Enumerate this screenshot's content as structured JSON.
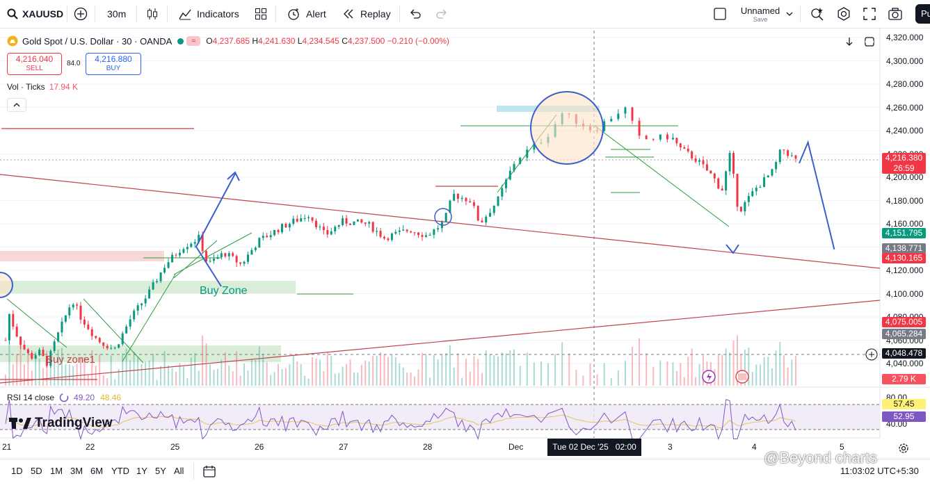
{
  "toolbar": {
    "symbol": "XAUUSD",
    "interval": "30m",
    "indicators_label": "Indicators",
    "alert_label": "Alert",
    "replay_label": "Replay",
    "layout_name": "Unnamed",
    "layout_save": "Save",
    "publish_label": "Pu"
  },
  "legend": {
    "title": "Gold Spot / U.S. Dollar · 30 · OANDA",
    "open_label": "O",
    "open": "4,237.685",
    "high_label": "H",
    "high": "4,241.630",
    "low_label": "L",
    "low": "4,234.545",
    "close_label": "C",
    "close": "4,237.500",
    "change": "−0.210 (−0.00%)",
    "sell_price": "4,216.040",
    "sell_label": "SELL",
    "spread": "84.0",
    "buy_price": "4,216.880",
    "buy_label": "BUY",
    "vol_label": "Vol · Ticks",
    "vol_value": "17.94 K"
  },
  "annotations": {
    "buy_zone": "Buy Zone",
    "buy_zone1": "Buy zone1"
  },
  "watermark": "TradingView",
  "credit": "@Beyond charts",
  "rsi": {
    "label": "RSI 14 close",
    "value1": "49.20",
    "value2": "48.46",
    "axis": [
      "80.00",
      "40.00"
    ],
    "tag1": "57.45",
    "tag2": "52.95"
  },
  "price_tags": [
    {
      "text": "4,216.380",
      "sub": "26:59",
      "color": "#f23645"
    },
    {
      "text": "4,151.795",
      "color": "#089981"
    },
    {
      "text": "4,138.771",
      "color": "#787b86"
    },
    {
      "text": "4,130.165",
      "color": "#f23645"
    },
    {
      "text": "4,075.005",
      "color": "#f23645"
    },
    {
      "text": "4,065.284",
      "color": "#787b86"
    },
    {
      "text": "4,048.478",
      "color": "#131722"
    },
    {
      "text": "2.79 K",
      "color": "#f7525f"
    }
  ],
  "time_axis": {
    "labels": [
      "21",
      "22",
      "25",
      "26",
      "27",
      "28",
      "Dec",
      "3",
      "4",
      "5"
    ],
    "crosshair_label": "Tue 02 Dec '25   02:00"
  },
  "ranges": [
    "1D",
    "5D",
    "1M",
    "3M",
    "6M",
    "YTD",
    "1Y",
    "5Y",
    "All"
  ],
  "clock": "11:03:02 UTC+5:30",
  "chart_data": {
    "type": "candlestick",
    "symbol": "XAUUSD",
    "timeframe": "30",
    "y_ticks": [
      4320,
      4300,
      4280,
      4260,
      4240,
      4220,
      4200,
      4180,
      4160,
      4140,
      4120,
      4100,
      4080,
      4060,
      4040
    ],
    "y_tick_labels": [
      "4,320.000",
      "4,300.000",
      "4,280.000",
      "4,260.000",
      "4,240.000",
      "4,220.000",
      "4,200.000",
      "4,180.000",
      "4,160.000",
      "4,140.000",
      "4,120.000",
      "4,100.000",
      "4,080.000",
      "4,060.000",
      "4,040.000"
    ],
    "ylim": [
      4030,
      4330
    ],
    "x_labels": [
      "21",
      "22",
      "25",
      "26",
      "27",
      "28",
      "Dec",
      "3",
      "4",
      "5"
    ],
    "close_path": [
      [
        0,
        4060
      ],
      [
        0.05,
        4085
      ],
      [
        0.1,
        4070
      ],
      [
        0.2,
        4055
      ],
      [
        0.3,
        4045
      ],
      [
        0.4,
        4050
      ],
      [
        0.5,
        4040
      ],
      [
        0.6,
        4060
      ],
      [
        0.8,
        4095
      ],
      [
        0.9,
        4080
      ],
      [
        1.1,
        4060
      ],
      [
        1.3,
        4052
      ],
      [
        1.5,
        4080
      ],
      [
        1.7,
        4100
      ],
      [
        1.9,
        4125
      ],
      [
        2.1,
        4140
      ],
      [
        2.3,
        4148
      ],
      [
        2.4,
        4125
      ],
      [
        2.6,
        4135
      ],
      [
        2.8,
        4125
      ],
      [
        3.0,
        4145
      ],
      [
        3.3,
        4158
      ],
      [
        3.6,
        4168
      ],
      [
        3.8,
        4150
      ],
      [
        4.0,
        4162
      ],
      [
        4.3,
        4160
      ],
      [
        4.5,
        4148
      ],
      [
        4.8,
        4155
      ],
      [
        5.0,
        4150
      ],
      [
        5.1,
        4155
      ],
      [
        5.2,
        4162
      ],
      [
        5.3,
        4185
      ],
      [
        5.5,
        4180
      ],
      [
        5.6,
        4160
      ],
      [
        5.8,
        4180
      ],
      [
        6.0,
        4215
      ],
      [
        6.2,
        4235
      ],
      [
        6.3,
        4255
      ],
      [
        6.5,
        4240
      ],
      [
        6.7,
        4260
      ],
      [
        6.8,
        4232
      ],
      [
        7.0,
        4235
      ],
      [
        7.1,
        4225
      ],
      [
        7.3,
        4215
      ],
      [
        7.5,
        4200
      ],
      [
        7.6,
        4188
      ],
      [
        7.7,
        4220
      ],
      [
        7.8,
        4170
      ],
      [
        8.0,
        4190
      ],
      [
        8.2,
        4205
      ],
      [
        8.3,
        4225
      ],
      [
        8.5,
        4212
      ]
    ],
    "projection": [
      [
        8.5,
        4212
      ],
      [
        8.6,
        4230
      ],
      [
        8.9,
        4138
      ]
    ],
    "rsi_range": [
      20,
      90
    ]
  }
}
